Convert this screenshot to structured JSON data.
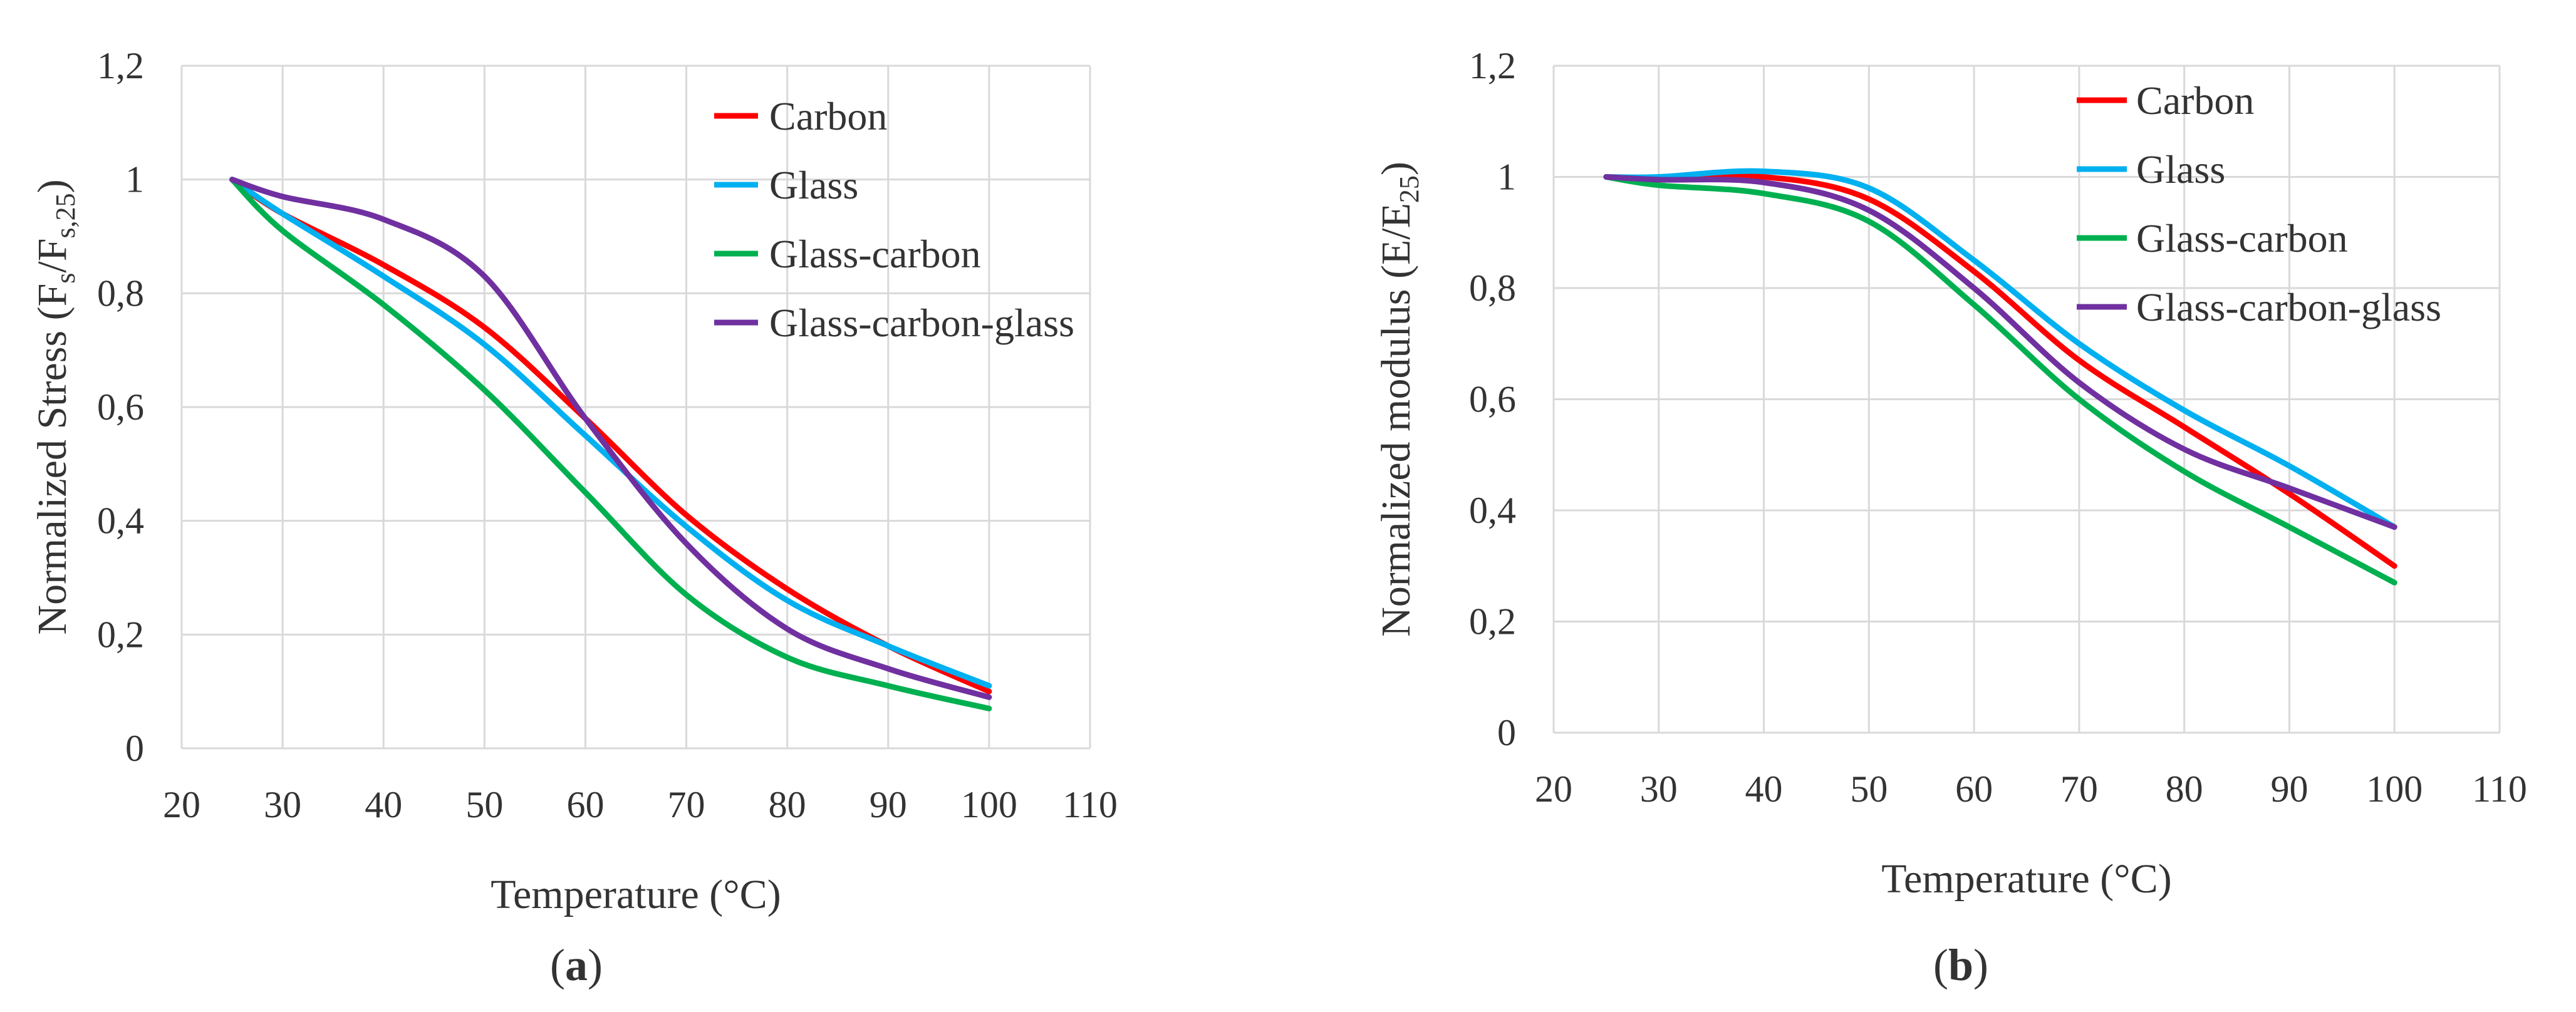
{
  "colors": {
    "Carbon": "#ff0000",
    "Glass": "#00b0f0",
    "Glass-carbon": "#00b050",
    "Glass-carbon-glass": "#7030a0"
  },
  "chart_data": [
    {
      "type": "line",
      "panel_label": "a",
      "title": "",
      "xlabel": "Temperature (°C)",
      "ylabel": "Normalized Stress (Fs/Fs,25)",
      "ylabel_parts": {
        "main": "Normalized Stress (F",
        "sub1": "s",
        "mid": "/F",
        "sub2": "s,25",
        "end": ")"
      },
      "xlim": [
        20,
        110
      ],
      "ylim": [
        0,
        1.2
      ],
      "x_ticks": [
        "20",
        "30",
        "40",
        "50",
        "60",
        "70",
        "80",
        "90",
        "100",
        "110"
      ],
      "y_ticks": [
        "0",
        "0,2",
        "0,4",
        "0,6",
        "0,8",
        "1",
        "1,2"
      ],
      "legend": [
        "Carbon",
        "Glass",
        "Glass-carbon",
        "Glass-carbon-glass"
      ],
      "series": [
        {
          "name": "Carbon",
          "x": [
            25,
            30,
            40,
            50,
            60,
            70,
            80,
            90,
            100
          ],
          "values": [
            1.0,
            0.94,
            0.85,
            0.74,
            0.58,
            0.41,
            0.28,
            0.18,
            0.1
          ]
        },
        {
          "name": "Glass",
          "x": [
            25,
            30,
            40,
            50,
            60,
            70,
            80,
            90,
            100
          ],
          "values": [
            1.0,
            0.94,
            0.83,
            0.71,
            0.55,
            0.39,
            0.26,
            0.18,
            0.11
          ]
        },
        {
          "name": "Glass-carbon",
          "x": [
            25,
            30,
            40,
            50,
            60,
            70,
            80,
            90,
            100
          ],
          "values": [
            1.0,
            0.91,
            0.78,
            0.63,
            0.45,
            0.27,
            0.16,
            0.11,
            0.07
          ]
        },
        {
          "name": "Glass-carbon-glass",
          "x": [
            25,
            30,
            40,
            50,
            60,
            70,
            80,
            90,
            100
          ],
          "values": [
            1.0,
            0.97,
            0.93,
            0.83,
            0.58,
            0.36,
            0.21,
            0.14,
            0.09
          ]
        }
      ]
    },
    {
      "type": "line",
      "panel_label": "b",
      "title": "",
      "xlabel": "Temperature (°C)",
      "ylabel": "Normalized modulus (E/E25)",
      "ylabel_parts": {
        "main": "Normalized modulus (E/E",
        "sub1": "25",
        "end": ")"
      },
      "xlim": [
        20,
        110
      ],
      "ylim": [
        0,
        1.2
      ],
      "x_ticks": [
        "20",
        "30",
        "40",
        "50",
        "60",
        "70",
        "80",
        "90",
        "100",
        "110"
      ],
      "y_ticks": [
        "0",
        "0,2",
        "0,4",
        "0,6",
        "0,8",
        "1",
        "1,2"
      ],
      "legend": [
        "Carbon",
        "Glass",
        "Glass-carbon",
        "Glass-carbon-glass"
      ],
      "series": [
        {
          "name": "Carbon",
          "x": [
            25,
            30,
            40,
            50,
            60,
            70,
            80,
            90,
            100
          ],
          "values": [
            1.0,
            0.995,
            1.0,
            0.96,
            0.83,
            0.67,
            0.55,
            0.43,
            0.3
          ]
        },
        {
          "name": "Glass",
          "x": [
            25,
            30,
            40,
            50,
            60,
            70,
            80,
            90,
            100
          ],
          "values": [
            1.0,
            1.0,
            1.01,
            0.98,
            0.85,
            0.7,
            0.58,
            0.48,
            0.37
          ]
        },
        {
          "name": "Glass-carbon",
          "x": [
            25,
            30,
            40,
            50,
            60,
            70,
            80,
            90,
            100
          ],
          "values": [
            1.0,
            0.985,
            0.97,
            0.92,
            0.77,
            0.6,
            0.47,
            0.37,
            0.27
          ]
        },
        {
          "name": "Glass-carbon-glass",
          "x": [
            25,
            30,
            40,
            50,
            60,
            70,
            80,
            90,
            100
          ],
          "values": [
            1.0,
            0.995,
            0.99,
            0.94,
            0.8,
            0.63,
            0.51,
            0.44,
            0.37
          ]
        }
      ]
    }
  ]
}
